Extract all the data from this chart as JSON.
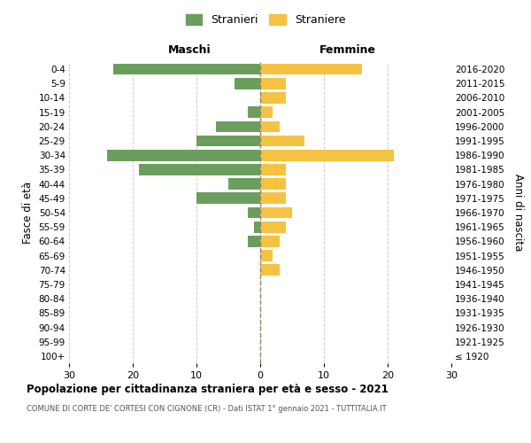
{
  "age_groups": [
    "100+",
    "95-99",
    "90-94",
    "85-89",
    "80-84",
    "75-79",
    "70-74",
    "65-69",
    "60-64",
    "55-59",
    "50-54",
    "45-49",
    "40-44",
    "35-39",
    "30-34",
    "25-29",
    "20-24",
    "15-19",
    "10-14",
    "5-9",
    "0-4"
  ],
  "birth_years": [
    "≤ 1920",
    "1921-1925",
    "1926-1930",
    "1931-1935",
    "1936-1940",
    "1941-1945",
    "1946-1950",
    "1951-1955",
    "1956-1960",
    "1961-1965",
    "1966-1970",
    "1971-1975",
    "1976-1980",
    "1981-1985",
    "1986-1990",
    "1991-1995",
    "1996-2000",
    "2001-2005",
    "2006-2010",
    "2011-2015",
    "2016-2020"
  ],
  "males": [
    0,
    0,
    0,
    0,
    0,
    0,
    0,
    0,
    2,
    1,
    2,
    10,
    5,
    19,
    24,
    10,
    7,
    2,
    0,
    4,
    23
  ],
  "females": [
    0,
    0,
    0,
    0,
    0,
    0,
    3,
    2,
    3,
    4,
    5,
    4,
    4,
    4,
    21,
    7,
    3,
    2,
    4,
    4,
    16
  ],
  "male_color": "#6b9e5e",
  "female_color": "#f5c242",
  "grid_color": "#cccccc",
  "center_line_color": "#888866",
  "title": "Popolazione per cittadinanza straniera per età e sesso - 2021",
  "subtitle": "COMUNE DI CORTE DE' CORTESI CON CIGNONE (CR) - Dati ISTAT 1° gennaio 2021 - TUTTITALIA.IT",
  "xlabel_left": "Maschi",
  "xlabel_right": "Femmine",
  "ylabel_left": "Fasce di età",
  "ylabel_right": "Anni di nascita",
  "legend_male": "Stranieri",
  "legend_female": "Straniere",
  "xlim": 30,
  "background_color": "#ffffff"
}
